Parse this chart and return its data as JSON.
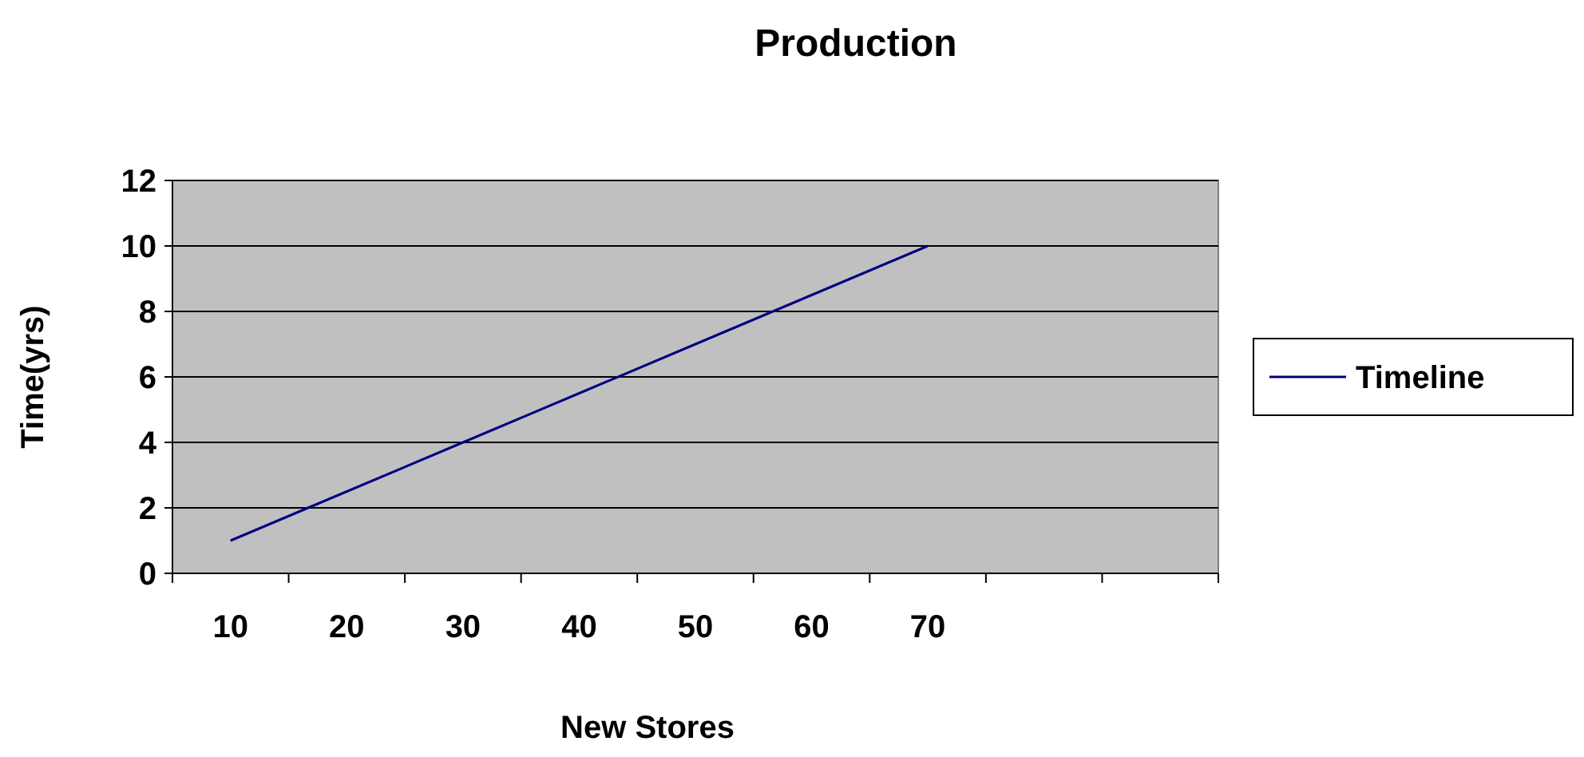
{
  "chart_data": {
    "type": "line",
    "title": "Production",
    "xlabel": "New Stores",
    "ylabel": "Time(yrs)",
    "categories": [
      "10",
      "20",
      "30",
      "40",
      "50",
      "60",
      "70",
      null,
      null
    ],
    "series": [
      {
        "name": "Timeline",
        "color": "#000080",
        "values": [
          1,
          2.5,
          4,
          5.5,
          7,
          8.5,
          10,
          null,
          null
        ]
      }
    ],
    "ylim": [
      0,
      12
    ],
    "yticks": [
      0,
      2,
      4,
      6,
      8,
      10,
      12
    ],
    "grid": "y",
    "legend": "right"
  }
}
